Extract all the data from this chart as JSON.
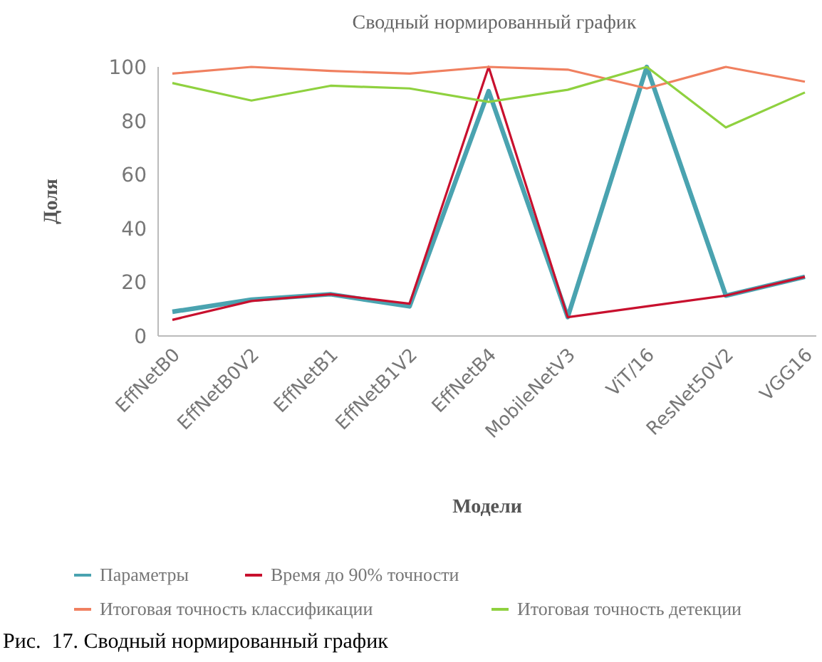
{
  "chart_data": {
    "type": "line",
    "title": "Сводный нормированный график",
    "xlabel": "Модели",
    "ylabel": "Доля",
    "categories": [
      "EffNetB0",
      "EffNetB0V2",
      "EffNetB1",
      "EffNetB1V2",
      "EffNetB4",
      "MobileNetV3",
      "ViT/16",
      "ResNet50V2",
      "VGG16"
    ],
    "series": [
      {
        "name": "Параметры",
        "color": "#4aa3b0",
        "values": [
          9,
          13.5,
          15.5,
          11,
          91,
          7,
          100,
          15,
          22
        ]
      },
      {
        "name": "Время до 90% точности",
        "color": "#c8102e",
        "values": [
          6,
          13,
          15.5,
          12,
          100,
          7,
          11,
          15,
          22
        ]
      },
      {
        "name": "Итоговая точность классификации",
        "color": "#f08060",
        "values": [
          97.5,
          100,
          98.5,
          97.5,
          100,
          99,
          92,
          100,
          94.5
        ]
      },
      {
        "name": "Итоговая точность детекции",
        "color": "#8fd13f",
        "values": [
          94,
          87.5,
          93,
          92,
          87,
          91.5,
          100,
          77.5,
          90.5
        ]
      }
    ],
    "ylim": [
      0,
      100
    ],
    "yticks": [
      0,
      20,
      40,
      60,
      80,
      100
    ],
    "grid": false,
    "legend": "bottom",
    "marker": "none",
    "line_style": "solid",
    "annotations": [
      "Рис.  17. Сводный нормированный график"
    ]
  }
}
